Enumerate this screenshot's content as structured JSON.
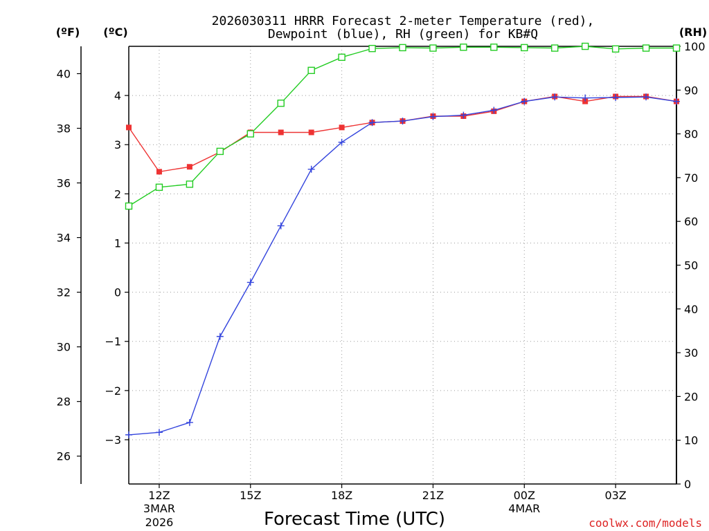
{
  "chart_data": {
    "type": "line",
    "title_line1": "2026030311 HRRR Forecast 2-meter Temperature (red),",
    "title_line2": "Dewpoint (blue), RH (green) for KB#Q",
    "xlabel": "Forecast Time (UTC)",
    "credit": "coolwx.com/models",
    "units": {
      "fahrenheit": "(ºF)",
      "celsius": "(ºC)",
      "rh": "(RH)"
    },
    "x_ticks": [
      {
        "hour": 12,
        "label": "12Z",
        "sub1": "3MAR",
        "sub2": "2026"
      },
      {
        "hour": 15,
        "label": "15Z",
        "sub1": "",
        "sub2": ""
      },
      {
        "hour": 18,
        "label": "18Z",
        "sub1": "",
        "sub2": ""
      },
      {
        "hour": 21,
        "label": "21Z",
        "sub1": "",
        "sub2": ""
      },
      {
        "hour": 24,
        "label": "00Z",
        "sub1": "4MAR",
        "sub2": ""
      },
      {
        "hour": 27,
        "label": "03Z",
        "sub1": "",
        "sub2": ""
      }
    ],
    "xlim": [
      11,
      29
    ],
    "ylim_celsius": [
      -3.9,
      5.0
    ],
    "celsius_ticks": [
      -3,
      -2,
      -1,
      0,
      1,
      2,
      3,
      4
    ],
    "celsius_tick_labels": [
      "−3",
      "−2",
      "−1",
      "0",
      "1",
      "2",
      "3",
      "4"
    ],
    "fahrenheit_ticks": [
      26,
      28,
      30,
      32,
      34,
      36,
      38,
      40
    ],
    "fahrenheit_tick_labels": [
      "26",
      "28",
      "30",
      "32",
      "34",
      "36",
      "38",
      "40"
    ],
    "ylim_rh": [
      0,
      100
    ],
    "rh_ticks": [
      0,
      10,
      20,
      30,
      40,
      50,
      60,
      70,
      80,
      90,
      100
    ],
    "rh_tick_labels": [
      "0",
      "10",
      "20",
      "30",
      "40",
      "50",
      "60",
      "70",
      "80",
      "90",
      "100"
    ],
    "hours": [
      11,
      12,
      13,
      14,
      15,
      16,
      17,
      18,
      19,
      20,
      21,
      22,
      23,
      24,
      25,
      26,
      27,
      28,
      29
    ],
    "series": [
      {
        "name": "Temperature",
        "color": "#ee3333",
        "marker": "filled-square",
        "values": [
          3.35,
          2.45,
          2.55,
          2.85,
          3.25,
          3.25,
          3.25,
          3.35,
          3.45,
          3.48,
          3.58,
          3.58,
          3.68,
          3.88,
          3.98,
          3.88,
          3.98,
          3.98,
          3.88
        ]
      },
      {
        "name": "Dewpoint",
        "color": "#3344dd",
        "marker": "plus",
        "values": [
          -2.9,
          -2.85,
          -2.65,
          -0.9,
          0.2,
          1.35,
          2.5,
          3.05,
          3.45,
          3.48,
          3.57,
          3.6,
          3.7,
          3.88,
          3.97,
          3.95,
          3.96,
          3.97,
          3.88
        ]
      },
      {
        "name": "RH",
        "color": "#22cc22",
        "marker": "open-square",
        "axis": "rh",
        "values": [
          63.5,
          67.8,
          68.5,
          76.0,
          80.0,
          87.0,
          94.5,
          97.5,
          99.5,
          99.7,
          99.6,
          99.8,
          99.8,
          99.7,
          99.6,
          100.0,
          99.4,
          99.6,
          99.6
        ]
      }
    ],
    "grid": true,
    "grid_color": "#999999",
    "credit_color": "#dd2222"
  }
}
